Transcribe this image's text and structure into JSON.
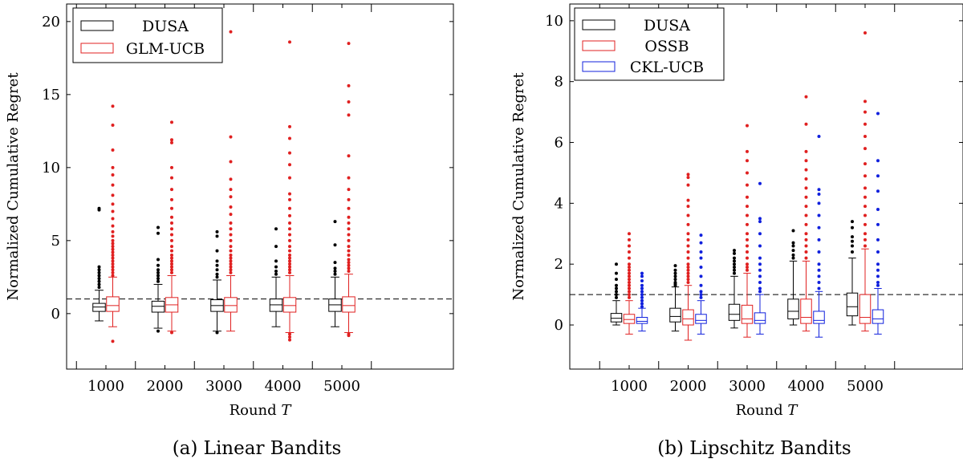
{
  "chart_data": [
    {
      "type": "box",
      "caption": "(a) Linear Bandits",
      "xlabel_text": "Round ",
      "xlabel_var": "T",
      "ylabel": "Normalized Cumulative Regret",
      "categories": [
        "1000",
        "2000",
        "3000",
        "4000",
        "5000"
      ],
      "ylim": [
        -3.8,
        21.2
      ],
      "yticks": [
        0,
        5,
        10,
        15,
        20
      ],
      "reference_line": 1,
      "legend_position": "top-left",
      "series": [
        {
          "name": "DUSA",
          "color": "#000000",
          "boxes": [
            {
              "whisker_low": -0.5,
              "q1": 0.15,
              "median": 0.45,
              "q3": 0.7,
              "whisker_high": 1.6,
              "outliers": [
                1.8,
                2.0,
                2.2,
                2.4,
                2.6,
                2.8,
                3.0,
                3.2,
                7.1,
                7.2
              ]
            },
            {
              "whisker_low": -1.0,
              "q1": 0.1,
              "median": 0.5,
              "q3": 0.85,
              "whisker_high": 2.0,
              "outliers": [
                -1.2,
                2.2,
                2.4,
                2.6,
                2.8,
                3.0,
                3.3,
                3.7,
                5.5,
                5.9
              ]
            },
            {
              "whisker_low": -1.2,
              "q1": 0.15,
              "median": 0.55,
              "q3": 0.95,
              "whisker_high": 2.3,
              "outliers": [
                -1.3,
                2.5,
                2.7,
                3.0,
                3.3,
                3.6,
                4.3,
                5.3,
                5.6
              ]
            },
            {
              "whisker_low": -0.9,
              "q1": 0.15,
              "median": 0.6,
              "q3": 1.0,
              "whisker_high": 2.5,
              "outliers": [
                2.7,
                2.9,
                3.2,
                3.6,
                4.6,
                5.8
              ]
            },
            {
              "whisker_low": -0.9,
              "q1": 0.15,
              "median": 0.6,
              "q3": 1.0,
              "whisker_high": 2.5,
              "outliers": [
                2.7,
                2.9,
                3.1,
                3.5,
                4.7,
                6.3
              ]
            }
          ]
        },
        {
          "name": "GLM-UCB",
          "color": "#e02020",
          "boxes": [
            {
              "whisker_low": -0.9,
              "q1": 0.15,
              "median": 0.55,
              "q3": 1.15,
              "whisker_high": 2.5,
              "outliers": [
                -1.9,
                2.6,
                2.8,
                3.0,
                3.2,
                3.4,
                3.6,
                3.8,
                4.0,
                4.2,
                4.4,
                4.6,
                4.8,
                5.0,
                5.3,
                5.6,
                6.0,
                6.5,
                7.0,
                7.5,
                8.1,
                8.8,
                9.5,
                10.0,
                11.2,
                12.9,
                14.2
              ]
            },
            {
              "whisker_low": -1.2,
              "q1": 0.1,
              "median": 0.6,
              "q3": 1.1,
              "whisker_high": 2.6,
              "outliers": [
                -1.3,
                2.8,
                3.0,
                3.2,
                3.4,
                3.6,
                3.8,
                4.0,
                4.3,
                4.6,
                5.0,
                5.4,
                5.8,
                6.2,
                6.6,
                7.2,
                7.8,
                8.5,
                9.3,
                10.0,
                11.7,
                11.9,
                13.1
              ]
            },
            {
              "whisker_low": -1.2,
              "q1": 0.1,
              "median": 0.55,
              "q3": 1.1,
              "whisker_high": 2.6,
              "outliers": [
                2.8,
                3.0,
                3.2,
                3.4,
                3.6,
                3.8,
                4.0,
                4.3,
                4.6,
                5.0,
                5.4,
                5.8,
                6.2,
                6.8,
                7.3,
                8.0,
                8.5,
                9.2,
                10.4,
                12.1,
                19.3
              ]
            },
            {
              "whisker_low": -1.3,
              "q1": 0.1,
              "median": 0.55,
              "q3": 1.1,
              "whisker_high": 2.6,
              "outliers": [
                -1.4,
                -1.6,
                -1.8,
                2.8,
                3.0,
                3.2,
                3.4,
                3.6,
                3.8,
                4.0,
                4.3,
                4.6,
                5.0,
                5.4,
                5.8,
                6.2,
                6.7,
                7.2,
                7.8,
                8.2,
                9.3,
                10.2,
                11.0,
                12.0,
                12.8,
                18.6
              ]
            },
            {
              "whisker_low": -1.3,
              "q1": 0.1,
              "median": 0.55,
              "q3": 1.15,
              "whisker_high": 2.7,
              "outliers": [
                -1.4,
                -1.5,
                2.9,
                3.1,
                3.3,
                3.5,
                3.7,
                4.0,
                4.3,
                4.6,
                5.0,
                5.4,
                5.8,
                6.2,
                6.6,
                7.2,
                7.8,
                8.5,
                9.3,
                10.8,
                13.6,
                14.5,
                15.6,
                18.5
              ]
            }
          ]
        }
      ]
    },
    {
      "type": "box",
      "caption": "(b) Lipschitz Bandits",
      "xlabel_text": "Round ",
      "xlabel_var": "T",
      "ylabel": "Normalized Cumulative Regret",
      "categories": [
        "1000",
        "2000",
        "3000",
        "4000",
        "5000"
      ],
      "ylim": [
        -1.45,
        10.55
      ],
      "yticks": [
        0,
        2,
        4,
        6,
        8,
        10
      ],
      "reference_line": 1,
      "legend_position": "top-left",
      "series": [
        {
          "name": "DUSA",
          "color": "#000000",
          "boxes": [
            {
              "whisker_low": 0.0,
              "q1": 0.1,
              "median": 0.22,
              "q3": 0.38,
              "whisker_high": 0.8,
              "outliers": [
                0.9,
                1.0,
                1.1,
                1.2,
                1.3,
                1.5,
                1.7,
                2.0
              ]
            },
            {
              "whisker_low": -0.2,
              "q1": 0.1,
              "median": 0.28,
              "q3": 0.55,
              "whisker_high": 1.25,
              "outliers": [
                1.3,
                1.35,
                1.4,
                1.5,
                1.6,
                1.7,
                1.8,
                1.95
              ]
            },
            {
              "whisker_low": -0.1,
              "q1": 0.15,
              "median": 0.35,
              "q3": 0.68,
              "whisker_high": 1.6,
              "outliers": [
                1.7,
                1.8,
                1.9,
                2.0,
                2.1,
                2.2,
                2.35,
                2.45
              ]
            },
            {
              "whisker_low": 0.0,
              "q1": 0.2,
              "median": 0.45,
              "q3": 0.85,
              "whisker_high": 2.1,
              "outliers": [
                2.2,
                2.3,
                2.45,
                2.6,
                2.7,
                3.1
              ]
            },
            {
              "whisker_low": 0.0,
              "q1": 0.3,
              "median": 0.6,
              "q3": 1.05,
              "whisker_high": 2.2,
              "outliers": [
                2.4,
                2.6,
                2.75,
                2.9,
                3.2,
                3.4
              ]
            }
          ]
        },
        {
          "name": "OSSB",
          "color": "#e02020",
          "boxes": [
            {
              "whisker_low": -0.3,
              "q1": 0.05,
              "median": 0.18,
              "q3": 0.35,
              "whisker_high": 0.8,
              "outliers": [
                0.9,
                1.0,
                1.1,
                1.2,
                1.3,
                1.4,
                1.5,
                1.6,
                1.7,
                1.8,
                1.9,
                2.0,
                2.2,
                2.4,
                2.6,
                2.8,
                3.0
              ]
            },
            {
              "whisker_low": -0.5,
              "q1": 0.0,
              "median": 0.2,
              "q3": 0.5,
              "whisker_high": 1.3,
              "outliers": [
                1.4,
                1.5,
                1.6,
                1.7,
                1.8,
                1.9,
                2.0,
                2.2,
                2.4,
                2.6,
                2.8,
                3.0,
                3.3,
                3.6,
                3.9,
                4.1,
                4.6,
                4.85,
                4.95
              ]
            },
            {
              "whisker_low": -0.4,
              "q1": 0.05,
              "median": 0.2,
              "q3": 0.65,
              "whisker_high": 1.7,
              "outliers": [
                1.8,
                1.9,
                2.0,
                2.2,
                2.4,
                2.6,
                2.8,
                3.0,
                3.3,
                3.6,
                3.9,
                4.2,
                4.6,
                5.0,
                5.4,
                5.7,
                6.55
              ]
            },
            {
              "whisker_low": -0.2,
              "q1": 0.05,
              "median": 0.25,
              "q3": 0.85,
              "whisker_high": 2.1,
              "outliers": [
                2.2,
                2.4,
                2.6,
                2.8,
                3.0,
                3.3,
                3.6,
                3.9,
                4.2,
                4.5,
                4.8,
                5.1,
                5.4,
                5.7,
                6.6,
                7.5
              ]
            },
            {
              "whisker_low": -0.2,
              "q1": 0.05,
              "median": 0.25,
              "q3": 1.0,
              "whisker_high": 2.5,
              "outliers": [
                2.6,
                2.8,
                3.0,
                3.3,
                3.6,
                3.9,
                4.2,
                4.5,
                4.9,
                5.3,
                5.8,
                6.2,
                6.6,
                7.0,
                7.35,
                9.6
              ]
            }
          ]
        },
        {
          "name": "CKL-UCB",
          "color": "#1020dd",
          "boxes": [
            {
              "whisker_low": -0.2,
              "q1": 0.05,
              "median": 0.12,
              "q3": 0.25,
              "whisker_high": 0.55,
              "outliers": [
                0.6,
                0.7,
                0.8,
                0.9,
                1.0,
                1.1,
                1.2,
                1.3,
                1.45,
                1.6,
                1.7
              ]
            },
            {
              "whisker_low": -0.3,
              "q1": 0.05,
              "median": 0.15,
              "q3": 0.35,
              "whisker_high": 0.8,
              "outliers": [
                0.9,
                1.0,
                1.1,
                1.3,
                1.6,
                1.9,
                2.2,
                2.4,
                2.7,
                2.95
              ]
            },
            {
              "whisker_low": -0.3,
              "q1": 0.05,
              "median": 0.15,
              "q3": 0.4,
              "whisker_high": 1.0,
              "outliers": [
                1.1,
                1.2,
                1.4,
                1.6,
                1.8,
                2.0,
                2.2,
                2.6,
                3.0,
                3.4,
                3.5,
                4.65
              ]
            },
            {
              "whisker_low": -0.4,
              "q1": 0.05,
              "median": 0.15,
              "q3": 0.45,
              "whisker_high": 1.1,
              "outliers": [
                1.2,
                1.4,
                1.6,
                1.8,
                2.0,
                2.4,
                2.8,
                3.2,
                3.6,
                4.0,
                4.3,
                4.45,
                6.2
              ]
            },
            {
              "whisker_low": -0.3,
              "q1": 0.05,
              "median": 0.2,
              "q3": 0.5,
              "whisker_high": 1.2,
              "outliers": [
                1.3,
                1.4,
                1.6,
                1.8,
                2.0,
                2.4,
                2.8,
                3.3,
                3.8,
                4.4,
                4.9,
                5.4,
                6.95
              ]
            }
          ]
        }
      ]
    }
  ]
}
